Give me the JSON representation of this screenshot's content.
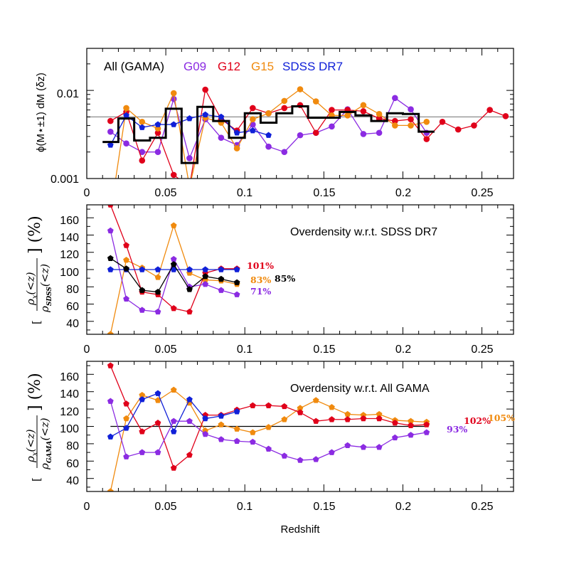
{
  "colors": {
    "all": "#000000",
    "g09": "#8b2be2",
    "g12": "#e0001a",
    "g15": "#f08a0e",
    "sdss": "#1020d8",
    "ref": "#8c8c8c"
  },
  "panel1": {
    "ylabel": "ϕ(M⋆±1) dM (δz)",
    "xtick_labels": [
      "0",
      "0.05",
      "0.1",
      "0.15",
      "0.2",
      "0.25"
    ],
    "ytick_labels": [
      "0.001",
      "0.01"
    ],
    "legend": {
      "all": "All (GAMA)",
      "g09": "G09",
      "g12": "G12",
      "g15": "G15",
      "sdss": "SDSS DR7"
    }
  },
  "panel2": {
    "title": "Overdensity w.r.t. SDSS DR7",
    "ylabel_pre": "[",
    "ylabel_num": "ρ",
    "ylabel_num_sub": "x",
    "ylabel_num_arg": "(<z)",
    "ylabel_den": "ρ",
    "ylabel_den_sub": "SDSS",
    "ylabel_den_arg": "(<z)",
    "ylabel_post": "] (%)",
    "xtick_labels": [
      "0",
      "0.05",
      "0.1",
      "0.15",
      "0.2",
      "0.25"
    ],
    "ytick_labels": [
      "40",
      "60",
      "80",
      "100",
      "120",
      "140",
      "160"
    ],
    "end_labels": {
      "g12": "101%",
      "g15": "83%",
      "all": "85%",
      "g09": "71%"
    }
  },
  "panel3": {
    "title": "Overdensity w.r.t. All GAMA",
    "ylabel_pre": "[",
    "ylabel_num": "ρ",
    "ylabel_num_sub": "x",
    "ylabel_num_arg": "(<z)",
    "ylabel_den": "ρ",
    "ylabel_den_sub": "GAMA",
    "ylabel_den_arg": "(<z)",
    "ylabel_post": "] (%)",
    "xlabel": "Redshift",
    "xtick_labels": [
      "0",
      "0.05",
      "0.1",
      "0.15",
      "0.2",
      "0.25"
    ],
    "ytick_labels": [
      "40",
      "60",
      "80",
      "100",
      "120",
      "140",
      "160"
    ],
    "end_labels": {
      "g12": "102%",
      "g15": "105%",
      "g09": "93%"
    }
  },
  "chart_data": [
    {
      "type": "line",
      "xlabel": "",
      "ylabel": "ϕ(M⋆±1) dM (δz)",
      "xlim": [
        0,
        0.27
      ],
      "ylim": [
        0.001,
        0.03
      ],
      "yscale": "log",
      "reference_line": 0.005,
      "series": [
        {
          "name": "All (GAMA)",
          "style": "step",
          "x": [
            0.015,
            0.025,
            0.035,
            0.045,
            0.055,
            0.065,
            0.075,
            0.085,
            0.095,
            0.105,
            0.115,
            0.125,
            0.135,
            0.145,
            0.155,
            0.165,
            0.175,
            0.185,
            0.195,
            0.205,
            0.215
          ],
          "y": [
            0.0026,
            0.0048,
            0.0027,
            0.0029,
            0.0062,
            0.0015,
            0.0065,
            0.0045,
            0.0029,
            0.0055,
            0.0043,
            0.0055,
            0.0066,
            0.0049,
            0.0049,
            0.0057,
            0.0052,
            0.0045,
            0.0055,
            0.0054,
            0.0034
          ]
        },
        {
          "name": "G09",
          "x": [
            0.015,
            0.025,
            0.035,
            0.045,
            0.055,
            0.065,
            0.075,
            0.085,
            0.095,
            0.105,
            0.115,
            0.125,
            0.135,
            0.145,
            0.155,
            0.165,
            0.175,
            0.185,
            0.195,
            0.205,
            0.215
          ],
          "y": [
            0.0034,
            0.0025,
            0.002,
            0.002,
            0.008,
            0.0017,
            0.0047,
            0.0029,
            0.0024,
            0.0041,
            0.0023,
            0.002,
            0.0031,
            0.0033,
            0.0039,
            0.0061,
            0.0032,
            0.0033,
            0.0082,
            0.0061,
            0.0033
          ]
        },
        {
          "name": "G12",
          "x": [
            0.015,
            0.025,
            0.035,
            0.045,
            0.055,
            0.065,
            0.075,
            0.085,
            0.095,
            0.105,
            0.115,
            0.125,
            0.135,
            0.145,
            0.155,
            0.165,
            0.175,
            0.185,
            0.195,
            0.205,
            0.215,
            0.225,
            0.235,
            0.245,
            0.255,
            0.265
          ],
          "y": [
            0.0045,
            0.0057,
            0.0016,
            0.0033,
            0.0011,
            0.0008,
            0.0102,
            0.0047,
            0.0035,
            0.0063,
            0.0055,
            0.0063,
            0.0068,
            0.0033,
            0.006,
            0.006,
            0.0058,
            0.0048,
            0.0045,
            0.0047,
            0.0028,
            0.0044,
            0.0036,
            0.004,
            0.006,
            0.0051
          ]
        },
        {
          "name": "G15",
          "x": [
            0.015,
            0.025,
            0.035,
            0.045,
            0.055,
            0.065,
            0.075,
            0.085,
            0.095,
            0.105,
            0.115,
            0.125,
            0.135,
            0.145,
            0.155,
            0.165,
            0.175,
            0.185,
            0.195,
            0.205,
            0.215
          ],
          "y": [
            0.0004,
            0.0063,
            0.0044,
            0.0037,
            0.0093,
            0.0008,
            0.0049,
            0.0043,
            0.0022,
            0.0047,
            0.0055,
            0.0076,
            0.0103,
            0.0075,
            0.0052,
            0.0052,
            0.0068,
            0.0054,
            0.004,
            0.004,
            0.0044
          ]
        },
        {
          "name": "SDSS DR7",
          "x": [
            0.015,
            0.025,
            0.035,
            0.045,
            0.055,
            0.065,
            0.075,
            0.085,
            0.095,
            0.105,
            0.115
          ],
          "y": [
            0.0024,
            0.0052,
            0.0038,
            0.0041,
            0.0041,
            0.0048,
            0.0053,
            0.005,
            0.0033,
            0.0035,
            0.0031
          ]
        }
      ]
    },
    {
      "type": "line",
      "title": "Overdensity w.r.t. SDSS DR7",
      "xlabel": "",
      "ylabel": "[ρx(<z)/ρSDSS(<z)] (%)",
      "xlim": [
        0,
        0.27
      ],
      "ylim": [
        25,
        175
      ],
      "series": [
        {
          "name": "All (GAMA)",
          "x": [
            0.015,
            0.025,
            0.035,
            0.045,
            0.055,
            0.065,
            0.075,
            0.085,
            0.095
          ],
          "y": [
            113,
            101,
            76,
            74,
            106,
            77,
            92,
            89,
            85
          ]
        },
        {
          "name": "G09",
          "x": [
            0.015,
            0.025,
            0.035,
            0.045,
            0.055,
            0.065,
            0.075,
            0.085,
            0.095
          ],
          "y": [
            145,
            66,
            53,
            51,
            112,
            80,
            83,
            76,
            71
          ]
        },
        {
          "name": "G12",
          "x": [
            0.015,
            0.025,
            0.035,
            0.045,
            0.055,
            0.065,
            0.075,
            0.085,
            0.095
          ],
          "y": [
            175,
            128,
            74,
            71,
            55,
            51,
            96,
            101,
            101
          ]
        },
        {
          "name": "G15",
          "x": [
            0.015,
            0.025,
            0.035,
            0.045,
            0.055,
            0.065,
            0.075,
            0.085,
            0.095
          ],
          "y": [
            25,
            111,
            102,
            91,
            151,
            96,
            88,
            87,
            83
          ]
        },
        {
          "name": "SDSS DR7",
          "x": [
            0.015,
            0.025,
            0.035,
            0.045,
            0.055,
            0.065,
            0.075,
            0.085,
            0.095
          ],
          "y": [
            100,
            100,
            100,
            100,
            100,
            100,
            100,
            100,
            100
          ]
        }
      ]
    },
    {
      "type": "line",
      "title": "Overdensity w.r.t. All GAMA",
      "xlabel": "Redshift",
      "ylabel": "[ρx(<z)/ρGAMA(<z)] (%)",
      "xlim": [
        0,
        0.27
      ],
      "ylim": [
        25,
        175
      ],
      "reference_line": 100,
      "series": [
        {
          "name": "G09",
          "x": [
            0.015,
            0.025,
            0.035,
            0.045,
            0.055,
            0.065,
            0.075,
            0.085,
            0.095,
            0.105,
            0.115,
            0.125,
            0.135,
            0.145,
            0.155,
            0.165,
            0.175,
            0.185,
            0.195,
            0.205,
            0.215
          ],
          "y": [
            129,
            65,
            70,
            70,
            106,
            106,
            91,
            85,
            83,
            82,
            74,
            66,
            61,
            62,
            70,
            78,
            76,
            76,
            87,
            90,
            93
          ]
        },
        {
          "name": "G12",
          "x": [
            0.015,
            0.025,
            0.035,
            0.045,
            0.055,
            0.065,
            0.075,
            0.085,
            0.095,
            0.105,
            0.115,
            0.125,
            0.135,
            0.145,
            0.155,
            0.165,
            0.175,
            0.185,
            0.195,
            0.205,
            0.215
          ],
          "y": [
            170,
            126,
            94,
            104,
            52,
            67,
            113,
            113,
            119,
            124,
            124,
            123,
            116,
            106,
            108,
            108,
            109,
            109,
            104,
            101,
            102
          ]
        },
        {
          "name": "G15",
          "x": [
            0.015,
            0.025,
            0.035,
            0.045,
            0.055,
            0.065,
            0.075,
            0.085,
            0.095,
            0.105,
            0.115,
            0.125,
            0.135,
            0.145,
            0.155,
            0.165,
            0.175,
            0.185,
            0.195,
            0.205,
            0.215
          ],
          "y": [
            25,
            109,
            136,
            130,
            142,
            127,
            95,
            102,
            97,
            93,
            99,
            108,
            121,
            130,
            122,
            114,
            113,
            114,
            107,
            106,
            105
          ]
        },
        {
          "name": "SDSS DR7",
          "x": [
            0.015,
            0.025,
            0.035,
            0.045,
            0.055,
            0.065,
            0.075,
            0.085,
            0.095
          ],
          "y": [
            88,
            98,
            131,
            138,
            94,
            131,
            109,
            112,
            117
          ]
        }
      ]
    }
  ]
}
